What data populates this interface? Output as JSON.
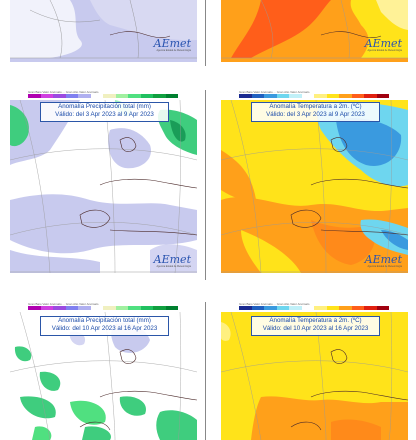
{
  "colors": {
    "precip_background": "#c8caee",
    "precip_land": "#ffffff",
    "precip_wet": "#3fcd7e",
    "precip_dry": "#c8caee",
    "temp_warm": "#ffa01a",
    "temp_yellow": "#ffe31a",
    "temp_hot": "#ff5e1a",
    "temp_cold": "#3a9adf",
    "temp_cool": "#6ed6ef",
    "title_blue": "#1a4aa8",
    "coast": "#4b2a2a"
  },
  "logo": {
    "wordmark": "AEmet",
    "subtitle": "Agencia Estatal de Meteorología"
  },
  "colorbar_scale": [
    "#b000b0",
    "#d040e0",
    "#9c4be0",
    "#8080f0",
    "#b0b0f0",
    "#ffffff",
    "#f0f0c0",
    "#a0f0a0",
    "#50e080",
    "#20c060",
    "#10a040",
    "#008030"
  ],
  "colorbar_temp": [
    "#1a2a90",
    "#2060c0",
    "#3a9adf",
    "#6ed6ef",
    "#c0f0f8",
    "#ffffff",
    "#fff080",
    "#ffe31a",
    "#ffa01a",
    "#ff5e1a",
    "#e02010",
    "#a00010"
  ],
  "colorbar_caption": "Gran Bajo Valor Anómalo ... Gran Alto Valor Anómalo",
  "panels": [
    {
      "id": "week0-precip",
      "kind": "precip",
      "title": "",
      "valid": ""
    },
    {
      "id": "week0-temp",
      "kind": "temp",
      "title": "",
      "valid": ""
    },
    {
      "id": "week1-precip",
      "kind": "precip",
      "title": "Anomalía Precipitación total (mm)",
      "valid": "Válido: del 3 Apr 2023 al 9 Apr 2023"
    },
    {
      "id": "week1-temp",
      "kind": "temp",
      "title": "Anomalía Temperatura a 2m. (ºC)",
      "valid": "Válido: del 3 Apr 2023 al 9 Apr 2023"
    },
    {
      "id": "week2-precip",
      "kind": "precip",
      "title": "Anomalía Precipitación total (mm)",
      "valid": "Válido: del 10 Apr 2023 al 16 Apr 2023"
    },
    {
      "id": "week2-temp",
      "kind": "temp",
      "title": "Anomalía Temperatura a 2m. (ºC)",
      "valid": "Válido: del 10 Apr 2023 al 16 Apr 2023"
    }
  ]
}
